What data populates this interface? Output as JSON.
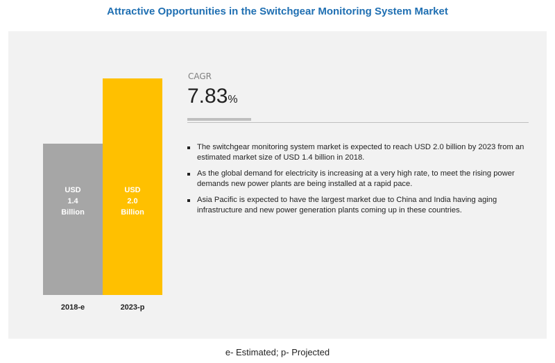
{
  "chart_data": {
    "type": "bar",
    "title": "Attractive Opportunities in the Switchgear Monitoring System Market",
    "categories": [
      "2018-e",
      "2023-p"
    ],
    "series": [
      {
        "values": [
          1.4,
          2.0
        ],
        "value_labels": [
          "USD 1.4 Billion",
          "USD 2.0 Billion"
        ],
        "colors": [
          "#a6a6a6",
          "#ffc000"
        ]
      }
    ],
    "cagr": {
      "label": "CAGR",
      "value": 7.83,
      "unit": "%"
    },
    "bullets": [
      "The switchgear monitoring system market is expected to reach USD 2.0 billion by 2023 from an estimated market size of USD 1.4 billion in 2018.",
      "As the global demand for electricity is increasing at a very high rate, to meet the rising power demands new power plants are being installed at a rapid pace.",
      "Asia Pacific is expected to have the largest market due to China and India having aging infrastructure and new power generation plants coming up in these countries."
    ],
    "footnote": "e- Estimated; p- Projected"
  }
}
